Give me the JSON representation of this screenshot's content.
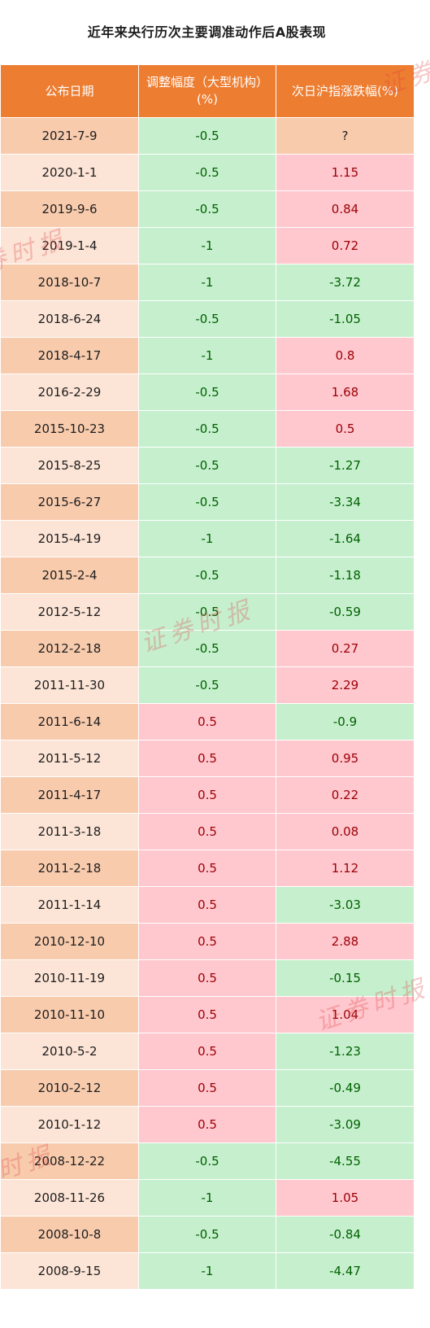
{
  "title": "近年来央行历次主要调准动作后A股表现",
  "headers": [
    "公布日期",
    "调整幅度（大型机构）(%)",
    "次日沪指涨跌幅(%)"
  ],
  "rows": [
    {
      "date": "2021-7-9",
      "adj": "-0.5",
      "chg": "?"
    },
    {
      "date": "2020-1-1",
      "adj": "-0.5",
      "chg": "1.15"
    },
    {
      "date": "2019-9-6",
      "adj": "-0.5",
      "chg": "0.84"
    },
    {
      "date": "2019-1-4",
      "adj": "-1",
      "chg": "0.72"
    },
    {
      "date": "2018-10-7",
      "adj": "-1",
      "chg": "-3.72"
    },
    {
      "date": "2018-6-24",
      "adj": "-0.5",
      "chg": "-1.05"
    },
    {
      "date": "2018-4-17",
      "adj": "-1",
      "chg": "0.8"
    },
    {
      "date": "2016-2-29",
      "adj": "-0.5",
      "chg": "1.68"
    },
    {
      "date": "2015-10-23",
      "adj": "-0.5",
      "chg": "0.5"
    },
    {
      "date": "2015-8-25",
      "adj": "-0.5",
      "chg": "-1.27"
    },
    {
      "date": "2015-6-27",
      "adj": "-0.5",
      "chg": "-3.34"
    },
    {
      "date": "2015-4-19",
      "adj": "-1",
      "chg": "-1.64"
    },
    {
      "date": "2015-2-4",
      "adj": "-0.5",
      "chg": "-1.18"
    },
    {
      "date": "2012-5-12",
      "adj": "-0.5",
      "chg": "-0.59"
    },
    {
      "date": "2012-2-18",
      "adj": "-0.5",
      "chg": "0.27"
    },
    {
      "date": "2011-11-30",
      "adj": "-0.5",
      "chg": "2.29"
    },
    {
      "date": "2011-6-14",
      "adj": "0.5",
      "chg": "-0.9"
    },
    {
      "date": "2011-5-12",
      "adj": "0.5",
      "chg": "0.95"
    },
    {
      "date": "2011-4-17",
      "adj": "0.5",
      "chg": "0.22"
    },
    {
      "date": "2011-3-18",
      "adj": "0.5",
      "chg": "0.08"
    },
    {
      "date": "2011-2-18",
      "adj": "0.5",
      "chg": "1.12"
    },
    {
      "date": "2011-1-14",
      "adj": "0.5",
      "chg": "-3.03"
    },
    {
      "date": "2010-12-10",
      "adj": "0.5",
      "chg": "2.88"
    },
    {
      "date": "2010-11-19",
      "adj": "0.5",
      "chg": "-0.15"
    },
    {
      "date": "2010-11-10",
      "adj": "0.5",
      "chg": "1.04"
    },
    {
      "date": "2010-5-2",
      "adj": "0.5",
      "chg": "-1.23"
    },
    {
      "date": "2010-2-12",
      "adj": "0.5",
      "chg": "-0.49"
    },
    {
      "date": "2010-1-12",
      "adj": "0.5",
      "chg": "-3.09"
    },
    {
      "date": "2008-12-22",
      "adj": "-0.5",
      "chg": "-4.55"
    },
    {
      "date": "2008-11-26",
      "adj": "-1",
      "chg": "1.05"
    },
    {
      "date": "2008-10-8",
      "adj": "-0.5",
      "chg": "-0.84"
    },
    {
      "date": "2008-9-15",
      "adj": "-1",
      "chg": "-4.47"
    }
  ],
  "watermark": "证券时报",
  "colors": {
    "header": "#ed7d31",
    "date_dark": "#f8cbad",
    "date_light": "#fce4d6",
    "positive_bg": "#ffc7ce",
    "positive_text": "#9c0006",
    "negative_bg": "#c6efce",
    "negative_text": "#006100"
  }
}
